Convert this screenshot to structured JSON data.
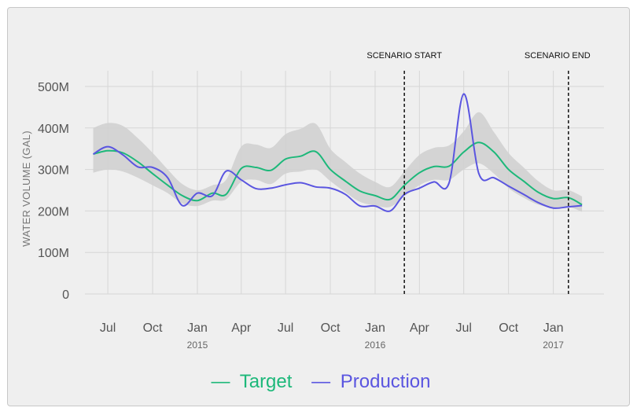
{
  "chart_data": {
    "type": "line",
    "ylabel": "WATER VOLUME (GAL)",
    "ylim": [
      0,
      500000000
    ],
    "y_ticks": [
      {
        "value": 0,
        "label": "0"
      },
      {
        "value": 100000000,
        "label": "100M"
      },
      {
        "value": 200000000,
        "label": "200M"
      },
      {
        "value": 300000000,
        "label": "300M"
      },
      {
        "value": 400000000,
        "label": "400M"
      },
      {
        "value": 500000000,
        "label": "500M"
      }
    ],
    "x_ticks": [
      {
        "date": "2014-07-01",
        "label": "Jul",
        "year": ""
      },
      {
        "date": "2014-10-01",
        "label": "Oct",
        "year": ""
      },
      {
        "date": "2015-01-01",
        "label": "Jan",
        "year": "2015"
      },
      {
        "date": "2015-04-01",
        "label": "Apr",
        "year": ""
      },
      {
        "date": "2015-07-01",
        "label": "Jul",
        "year": ""
      },
      {
        "date": "2015-10-01",
        "label": "Oct",
        "year": ""
      },
      {
        "date": "2016-01-01",
        "label": "Jan",
        "year": "2016"
      },
      {
        "date": "2016-04-01",
        "label": "Apr",
        "year": ""
      },
      {
        "date": "2016-07-01",
        "label": "Jul",
        "year": ""
      },
      {
        "date": "2016-10-01",
        "label": "Oct",
        "year": ""
      },
      {
        "date": "2017-01-01",
        "label": "Jan",
        "year": "2017"
      }
    ],
    "xlim": [
      "2014-05-15",
      "2017-04-15"
    ],
    "grid": true,
    "legend_position": "bottom",
    "annotations": [
      {
        "date": "2016-03-01",
        "label": "SCENARIO START"
      },
      {
        "date": "2017-02-01",
        "label": "SCENARIO END"
      }
    ],
    "series": [
      {
        "name": "Target",
        "color": "#1db87a",
        "points": [
          [
            "2014-06-01",
            337000000
          ],
          [
            "2014-07-01",
            345000000
          ],
          [
            "2014-08-01",
            340000000
          ],
          [
            "2014-09-01",
            318000000
          ],
          [
            "2014-10-01",
            290000000
          ],
          [
            "2014-11-01",
            262000000
          ],
          [
            "2014-12-01",
            237000000
          ],
          [
            "2015-01-01",
            225000000
          ],
          [
            "2015-02-01",
            243000000
          ],
          [
            "2015-03-01",
            240000000
          ],
          [
            "2015-04-01",
            302000000
          ],
          [
            "2015-05-01",
            305000000
          ],
          [
            "2015-06-01",
            298000000
          ],
          [
            "2015-07-01",
            325000000
          ],
          [
            "2015-08-01",
            332000000
          ],
          [
            "2015-09-01",
            343000000
          ],
          [
            "2015-10-01",
            300000000
          ],
          [
            "2015-11-01",
            272000000
          ],
          [
            "2015-12-01",
            248000000
          ],
          [
            "2016-01-01",
            237000000
          ],
          [
            "2016-02-01",
            228000000
          ],
          [
            "2016-03-01",
            262000000
          ],
          [
            "2016-04-01",
            292000000
          ],
          [
            "2016-05-01",
            307000000
          ],
          [
            "2016-06-01",
            308000000
          ],
          [
            "2016-07-01",
            342000000
          ],
          [
            "2016-08-01",
            365000000
          ],
          [
            "2016-09-01",
            342000000
          ],
          [
            "2016-10-01",
            300000000
          ],
          [
            "2016-11-01",
            272000000
          ],
          [
            "2016-12-01",
            245000000
          ],
          [
            "2017-01-01",
            230000000
          ],
          [
            "2017-02-01",
            232000000
          ],
          [
            "2017-03-01",
            215000000
          ]
        ]
      },
      {
        "name": "Production",
        "color": "#5a55e0",
        "points": [
          [
            "2014-06-01",
            337000000
          ],
          [
            "2014-07-01",
            355000000
          ],
          [
            "2014-08-01",
            335000000
          ],
          [
            "2014-09-01",
            306000000
          ],
          [
            "2014-10-01",
            305000000
          ],
          [
            "2014-11-01",
            280000000
          ],
          [
            "2014-12-01",
            213000000
          ],
          [
            "2015-01-01",
            243000000
          ],
          [
            "2015-02-01",
            237000000
          ],
          [
            "2015-03-01",
            296000000
          ],
          [
            "2015-04-01",
            275000000
          ],
          [
            "2015-05-01",
            254000000
          ],
          [
            "2015-06-01",
            255000000
          ],
          [
            "2015-07-01",
            263000000
          ],
          [
            "2015-08-01",
            268000000
          ],
          [
            "2015-09-01",
            258000000
          ],
          [
            "2015-10-01",
            255000000
          ],
          [
            "2015-11-01",
            240000000
          ],
          [
            "2015-12-01",
            212000000
          ],
          [
            "2016-01-01",
            212000000
          ],
          [
            "2016-02-01",
            200000000
          ],
          [
            "2016-03-01",
            240000000
          ],
          [
            "2016-04-01",
            255000000
          ],
          [
            "2016-05-01",
            270000000
          ],
          [
            "2016-06-01",
            268000000
          ],
          [
            "2016-07-01",
            482000000
          ],
          [
            "2016-08-01",
            290000000
          ],
          [
            "2016-09-01",
            280000000
          ],
          [
            "2016-10-01",
            260000000
          ],
          [
            "2016-11-01",
            240000000
          ],
          [
            "2016-12-01",
            220000000
          ],
          [
            "2017-01-01",
            207000000
          ],
          [
            "2017-02-01",
            210000000
          ],
          [
            "2017-03-01",
            213000000
          ]
        ]
      }
    ],
    "band": {
      "color": "#d0d0d0",
      "points": [
        [
          "2014-06-01",
          292000000,
          400000000
        ],
        [
          "2014-07-01",
          300000000,
          412000000
        ],
        [
          "2014-08-01",
          295000000,
          405000000
        ],
        [
          "2014-09-01",
          280000000,
          375000000
        ],
        [
          "2014-10-01",
          262000000,
          340000000
        ],
        [
          "2014-11-01",
          243000000,
          300000000
        ],
        [
          "2014-12-01",
          218000000,
          265000000
        ],
        [
          "2015-01-01",
          212000000,
          250000000
        ],
        [
          "2015-02-01",
          225000000,
          262000000
        ],
        [
          "2015-03-01",
          228000000,
          275000000
        ],
        [
          "2015-04-01",
          270000000,
          355000000
        ],
        [
          "2015-05-01",
          275000000,
          360000000
        ],
        [
          "2015-06-01",
          265000000,
          352000000
        ],
        [
          "2015-07-01",
          290000000,
          385000000
        ],
        [
          "2015-08-01",
          295000000,
          398000000
        ],
        [
          "2015-09-01",
          300000000,
          410000000
        ],
        [
          "2015-10-01",
          272000000,
          350000000
        ],
        [
          "2015-11-01",
          245000000,
          318000000
        ],
        [
          "2015-12-01",
          222000000,
          290000000
        ],
        [
          "2016-01-01",
          213000000,
          270000000
        ],
        [
          "2016-02-01",
          210000000,
          258000000
        ],
        [
          "2016-03-01",
          235000000,
          295000000
        ],
        [
          "2016-04-01",
          262000000,
          335000000
        ],
        [
          "2016-05-01",
          275000000,
          352000000
        ],
        [
          "2016-06-01",
          275000000,
          358000000
        ],
        [
          "2016-07-01",
          300000000,
          392000000
        ],
        [
          "2016-08-01",
          315000000,
          438000000
        ],
        [
          "2016-09-01",
          290000000,
          390000000
        ],
        [
          "2016-10-01",
          255000000,
          340000000
        ],
        [
          "2016-11-01",
          232000000,
          305000000
        ],
        [
          "2016-12-01",
          215000000,
          272000000
        ],
        [
          "2017-01-01",
          208000000,
          250000000
        ],
        [
          "2017-02-01",
          210000000,
          250000000
        ],
        [
          "2017-03-01",
          198000000,
          235000000
        ]
      ]
    }
  },
  "legend": {
    "target_label": "Target",
    "production_label": "Production",
    "dash": "—"
  }
}
